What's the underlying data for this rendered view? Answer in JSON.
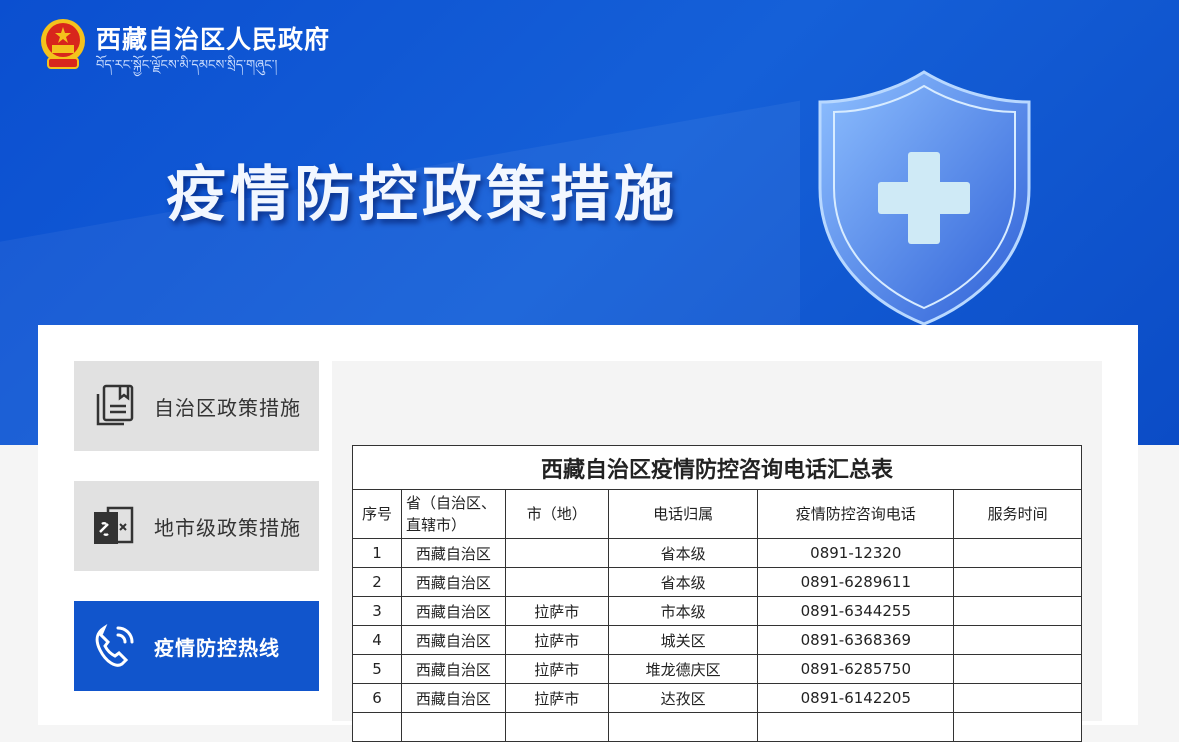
{
  "header": {
    "site_name": "西藏自治区人民政府",
    "site_name_tibetan": "བོད་རང་སྐྱོང་ལྗོངས་མི་དམངས་སྲིད་གཞུང་།",
    "banner_title": "疫情防控政策措施"
  },
  "sidebar": {
    "items": [
      {
        "label": "自治区政策措施",
        "icon": "document-icon",
        "active": false
      },
      {
        "label": "地市级政策措施",
        "icon": "linked-document-icon",
        "active": false
      },
      {
        "label": "疫情防控热线",
        "icon": "phone-icon",
        "active": true
      }
    ]
  },
  "table": {
    "title": "西藏自治区疫情防控咨询电话汇总表",
    "headers": [
      "序号",
      "省（自治区、直辖市）",
      "市（地）",
      "电话归属",
      "疫情防控咨询电话",
      "服务时间"
    ],
    "rows": [
      [
        "1",
        "西藏自治区",
        "",
        "省本级",
        "0891-12320",
        ""
      ],
      [
        "2",
        "西藏自治区",
        "",
        "省本级",
        "0891-6289611",
        ""
      ],
      [
        "3",
        "西藏自治区",
        "拉萨市",
        "市本级",
        "0891-6344255",
        ""
      ],
      [
        "4",
        "西藏自治区",
        "拉萨市",
        "城关区",
        "0891-6368369",
        ""
      ],
      [
        "5",
        "西藏自治区",
        "拉萨市",
        "堆龙德庆区",
        "0891-6285750",
        ""
      ],
      [
        "6",
        "西藏自治区",
        "拉萨市",
        "达孜区",
        "0891-6142205",
        ""
      ],
      [
        "",
        "",
        "",
        "",
        "",
        ""
      ]
    ]
  },
  "colors": {
    "banner": "#0b4fd0",
    "active": "#1155cc",
    "inactive": "#e1e1e1"
  }
}
